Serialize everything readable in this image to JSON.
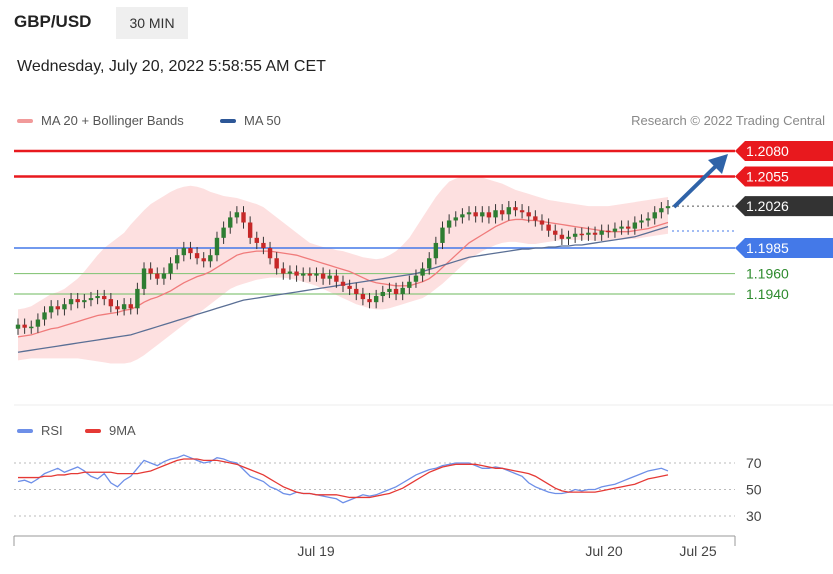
{
  "header": {
    "symbol": "GBP/USD",
    "timeframe": "30 MIN"
  },
  "datetime": "Wednesday, July 20, 2022 5:58:55 AM CET",
  "legend": {
    "ma20_label": "MA 20 + Bollinger Bands",
    "ma50_label": "MA 50",
    "credit": "Research © 2022 Trading Central"
  },
  "rsi_legend": {
    "rsi_label": "RSI",
    "ma_label": "9MA"
  },
  "colors": {
    "resistance": "#e8191e",
    "support": "#4479e8",
    "minor_support": "#8bc77e",
    "up": "#2e7d32",
    "down": "#c62828",
    "band": "#fde0e0",
    "ma20": "#f07b7b",
    "ma50": "#5a6f95",
    "arrow": "#2f63a8",
    "rsi": "#6d8fe8",
    "rsi_ma": "#e53935",
    "current": "#333333"
  },
  "chart_data": [
    {
      "type": "candlestick",
      "x_ticks": [
        "Jul 19",
        "Jul 20",
        "Jul 25"
      ],
      "ylim": [
        1.1895,
        1.21
      ],
      "levels": [
        {
          "value": 1.208,
          "label": "1.2080",
          "kind": "resistance"
        },
        {
          "value": 1.2055,
          "label": "1.2055",
          "kind": "resistance"
        },
        {
          "value": 1.2026,
          "label": "1.2026",
          "kind": "current"
        },
        {
          "value": 1.1985,
          "label": "1.1985",
          "kind": "support"
        },
        {
          "value": 1.196,
          "label": "1.1960",
          "kind": "minor_support"
        },
        {
          "value": 1.194,
          "label": "1.1940",
          "kind": "minor_support"
        }
      ],
      "close": [
        1.191,
        1.1907,
        1.1908,
        1.1915,
        1.1922,
        1.1928,
        1.1925,
        1.193,
        1.1935,
        1.1932,
        1.1934,
        1.1936,
        1.1938,
        1.1935,
        1.1928,
        1.1925,
        1.193,
        1.1926,
        1.1945,
        1.1965,
        1.196,
        1.1955,
        1.196,
        1.197,
        1.1978,
        1.1985,
        1.198,
        1.1975,
        1.1972,
        1.1978,
        1.1995,
        1.2005,
        1.2015,
        1.202,
        1.201,
        1.1995,
        1.199,
        1.1985,
        1.1975,
        1.1965,
        1.196,
        1.1962,
        1.1958,
        1.196,
        1.1958,
        1.196,
        1.1955,
        1.1958,
        1.1952,
        1.1948,
        1.1945,
        1.194,
        1.1935,
        1.1932,
        1.1938,
        1.1942,
        1.1945,
        1.194,
        1.1946,
        1.1952,
        1.1958,
        1.1965,
        1.1975,
        1.199,
        1.2005,
        1.2012,
        1.2015,
        1.2018,
        1.202,
        1.2016,
        1.202,
        1.2015,
        1.2022,
        1.2018,
        1.2025,
        1.2022,
        1.202,
        1.2016,
        1.2012,
        1.2008,
        1.2002,
        1.1998,
        1.1994,
        1.1996,
        1.1999,
        1.1998,
        1.2,
        1.1998,
        1.2002,
        1.2001,
        1.2004,
        1.2006,
        1.2004,
        1.201,
        1.2012,
        1.2014,
        1.202,
        1.2024,
        1.2026
      ],
      "ma20": [
        1.1898,
        1.1899,
        1.19,
        1.1902,
        1.1904,
        1.1906,
        1.1907,
        1.1909,
        1.1911,
        1.1913,
        1.1915,
        1.1917,
        1.1919,
        1.192,
        1.1921,
        1.1922,
        1.1924,
        1.1925,
        1.1928,
        1.1932,
        1.1935,
        1.1937,
        1.194,
        1.1943,
        1.1947,
        1.1951,
        1.1954,
        1.1957,
        1.1959,
        1.1962,
        1.1966,
        1.197,
        1.1974,
        1.1978,
        1.198,
        1.1981,
        1.1982,
        1.1982,
        1.1982,
        1.1981,
        1.198,
        1.1979,
        1.1978,
        1.1976,
        1.1974,
        1.1972,
        1.197,
        1.1968,
        1.1966,
        1.1964,
        1.1962,
        1.1959,
        1.1956,
        1.1953,
        1.1951,
        1.195,
        1.1949,
        1.1948,
        1.1948,
        1.1948,
        1.195,
        1.1952,
        1.1955,
        1.196,
        1.1966,
        1.1972,
        1.1978,
        1.1984,
        1.199,
        1.1994,
        1.1998,
        1.2002,
        1.2006,
        1.2009,
        1.2012,
        1.2013,
        1.2013,
        1.2012,
        1.2012,
        1.2011,
        1.201,
        1.2009,
        1.2008,
        1.2007,
        1.2006,
        1.2005,
        1.2004,
        1.2003,
        1.2002,
        1.2001,
        1.2001,
        1.2001,
        1.2001,
        1.2002,
        1.2003,
        1.2004,
        1.2006,
        1.2008,
        1.201
      ],
      "ma50": [
        1.1883,
        1.1884,
        1.1885,
        1.1886,
        1.1887,
        1.1888,
        1.1889,
        1.189,
        1.1891,
        1.1892,
        1.1893,
        1.1894,
        1.1895,
        1.1896,
        1.1897,
        1.1898,
        1.1899,
        1.19,
        1.1902,
        1.1904,
        1.1906,
        1.1908,
        1.191,
        1.1912,
        1.1914,
        1.1916,
        1.1918,
        1.192,
        1.1922,
        1.1924,
        1.1926,
        1.1928,
        1.193,
        1.1932,
        1.1934,
        1.1935,
        1.1936,
        1.1937,
        1.1938,
        1.1939,
        1.194,
        1.1941,
        1.1942,
        1.1943,
        1.1944,
        1.1945,
        1.1946,
        1.1947,
        1.1948,
        1.1949,
        1.195,
        1.1951,
        1.1952,
        1.1953,
        1.1954,
        1.1955,
        1.1956,
        1.1957,
        1.1958,
        1.1959,
        1.196,
        1.1962,
        1.1964,
        1.1966,
        1.1968,
        1.197,
        1.1972,
        1.1974,
        1.1976,
        1.1977,
        1.1978,
        1.1979,
        1.198,
        1.1981,
        1.1982,
        1.1983,
        1.1984,
        1.1984,
        1.1985,
        1.1985,
        1.1986,
        1.1986,
        1.1987,
        1.1987,
        1.1988,
        1.1988,
        1.1989,
        1.199,
        1.1991,
        1.1992,
        1.1993,
        1.1994,
        1.1995,
        1.1996,
        1.1998,
        1.2,
        1.2002,
        1.2004,
        1.2006
      ],
      "upper_band": [
        1.1925,
        1.1926,
        1.1928,
        1.1932,
        1.1936,
        1.194,
        1.1942,
        1.1945,
        1.195,
        1.1955,
        1.1962,
        1.197,
        1.1978,
        1.1985,
        1.199,
        1.1995,
        1.2,
        1.2008,
        1.2015,
        1.2022,
        1.2028,
        1.2032,
        1.2036,
        1.204,
        1.2043,
        1.2045,
        1.2046,
        1.2045,
        1.2043,
        1.204,
        1.2038,
        1.2036,
        1.2035,
        1.2034,
        1.2032,
        1.203,
        1.2028,
        1.2025,
        1.202,
        1.2015,
        1.201,
        1.2005,
        1.2,
        1.1995,
        1.199,
        1.1988,
        1.1986,
        1.1985,
        1.1983,
        1.1982,
        1.198,
        1.1978,
        1.1976,
        1.1975,
        1.1974,
        1.1975,
        1.1978,
        1.1982,
        1.1988,
        1.1995,
        1.2005,
        1.2015,
        1.2025,
        1.2035,
        1.2043,
        1.205,
        1.2053,
        1.2055,
        1.2056,
        1.2055,
        1.2054,
        1.2052,
        1.205,
        1.2048,
        1.2045,
        1.2042,
        1.204,
        1.2038,
        1.2036,
        1.2034,
        1.2032,
        1.2031,
        1.203,
        1.2029,
        1.2028,
        1.2027,
        1.2026,
        1.2026,
        1.2026,
        1.2026,
        1.2027,
        1.2028,
        1.2029,
        1.203,
        1.2031,
        1.2032,
        1.2033,
        1.2034,
        1.2035
      ],
      "lower_band": [
        1.1875,
        1.1876,
        1.1877,
        1.1877,
        1.1877,
        1.1877,
        1.1877,
        1.1877,
        1.1877,
        1.1877,
        1.1876,
        1.1875,
        1.1874,
        1.1873,
        1.1872,
        1.1872,
        1.1872,
        1.1873,
        1.1876,
        1.188,
        1.1885,
        1.189,
        1.1895,
        1.19,
        1.1905,
        1.191,
        1.1915,
        1.192,
        1.1925,
        1.193,
        1.1935,
        1.194,
        1.1945,
        1.1948,
        1.195,
        1.1952,
        1.1954,
        1.1955,
        1.1956,
        1.1956,
        1.1956,
        1.1955,
        1.1954,
        1.1952,
        1.195,
        1.1948,
        1.1945,
        1.1942,
        1.1939,
        1.1936,
        1.1933,
        1.193,
        1.1928,
        1.1926,
        1.1925,
        1.1925,
        1.1926,
        1.1928,
        1.193,
        1.1932,
        1.1934,
        1.1936,
        1.194,
        1.1945,
        1.195,
        1.1956,
        1.1962,
        1.1968,
        1.1974,
        1.1978,
        1.1982,
        1.1985,
        1.1988,
        1.199,
        1.1991,
        1.1991,
        1.199,
        1.1989,
        1.1989,
        1.199,
        1.1991,
        1.1992,
        1.1993,
        1.1993,
        1.1993,
        1.1993,
        1.1993,
        1.1992,
        1.1992,
        1.1992,
        1.1993,
        1.1993,
        1.1994,
        1.1994,
        1.1995,
        1.1996,
        1.1997,
        1.1998,
        1.1999
      ]
    },
    {
      "type": "line",
      "y_ticks": [
        70,
        50,
        30
      ],
      "ylim": [
        25,
        80
      ],
      "series": [
        {
          "name": "RSI",
          "values": [
            56,
            57,
            55,
            58,
            62,
            64,
            66,
            63,
            65,
            67,
            64,
            60,
            58,
            62,
            55,
            52,
            57,
            60,
            66,
            72,
            70,
            68,
            71,
            73,
            74,
            76,
            74,
            72,
            70,
            71,
            74,
            73,
            71,
            70,
            65,
            60,
            58,
            56,
            52,
            50,
            47,
            46,
            48,
            47,
            47,
            46,
            45,
            44,
            43,
            40,
            42,
            44,
            46,
            45,
            46,
            48,
            50,
            52,
            55,
            58,
            61,
            63,
            65,
            66,
            68,
            69,
            70,
            70,
            70,
            68,
            66,
            66,
            67,
            66,
            64,
            62,
            60,
            55,
            52,
            50,
            48,
            47,
            47,
            48,
            50,
            49,
            50,
            50,
            52,
            53,
            54,
            56,
            58,
            60,
            62,
            64,
            65,
            66,
            64
          ]
        },
        {
          "name": "9MA",
          "values": [
            59,
            59,
            59,
            59,
            60,
            60,
            61,
            61,
            62,
            62,
            63,
            63,
            63,
            63,
            63,
            62,
            62,
            62,
            62,
            63,
            64,
            66,
            68,
            70,
            72,
            73,
            73,
            73,
            72,
            72,
            72,
            71,
            70,
            69,
            67,
            65,
            63,
            61,
            58,
            55,
            52,
            50,
            48,
            47,
            47,
            46,
            46,
            46,
            46,
            45,
            44,
            44,
            44,
            44,
            45,
            46,
            47,
            49,
            51,
            54,
            57,
            60,
            63,
            65,
            67,
            68,
            69,
            69,
            69,
            69,
            68,
            67,
            66,
            66,
            65,
            64,
            63,
            62,
            60,
            57,
            54,
            51,
            49,
            48,
            48,
            48,
            48,
            48,
            49,
            50,
            51,
            52,
            53,
            54,
            56,
            58,
            59,
            60,
            61
          ]
        }
      ]
    }
  ]
}
